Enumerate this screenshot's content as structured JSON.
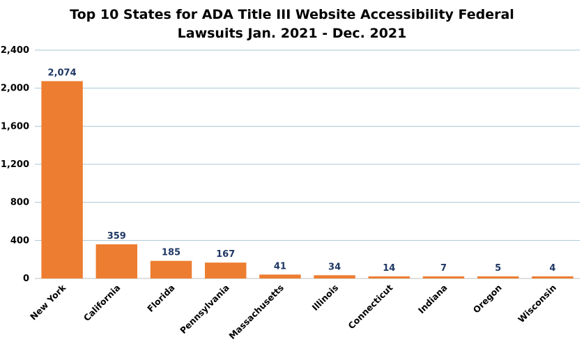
{
  "chart_data": {
    "type": "bar",
    "title_lines": [
      "Top 10 States for ADA Title III Website Accessibility Federal",
      "Lawsuits Jan. 2021 - Dec. 2021"
    ],
    "categories": [
      "New York",
      "California",
      "Florida",
      "Pennsylvania",
      "Massachusetts",
      "Illinois",
      "Connecticut",
      "Indiana",
      "Oregon",
      "Wisconsin"
    ],
    "values": [
      2074,
      359,
      185,
      167,
      41,
      34,
      14,
      7,
      5,
      4
    ],
    "data_labels": [
      "2,074",
      "359",
      "185",
      "167",
      "41",
      "34",
      "14",
      "7",
      "5",
      "4"
    ],
    "ylim": [
      0,
      2400
    ],
    "yticks": [
      0,
      400,
      800,
      1200,
      1600,
      2000,
      2400
    ],
    "ytick_labels": [
      "0",
      "400",
      "800",
      "1,200",
      "1,600",
      "2,000",
      "2,400"
    ],
    "grid": true,
    "legend": "none",
    "colors": {
      "bar": "#ED7D31",
      "data_label": "#1F3864",
      "grid": "#A9C4D6",
      "axis": "#BFBFBF"
    }
  }
}
